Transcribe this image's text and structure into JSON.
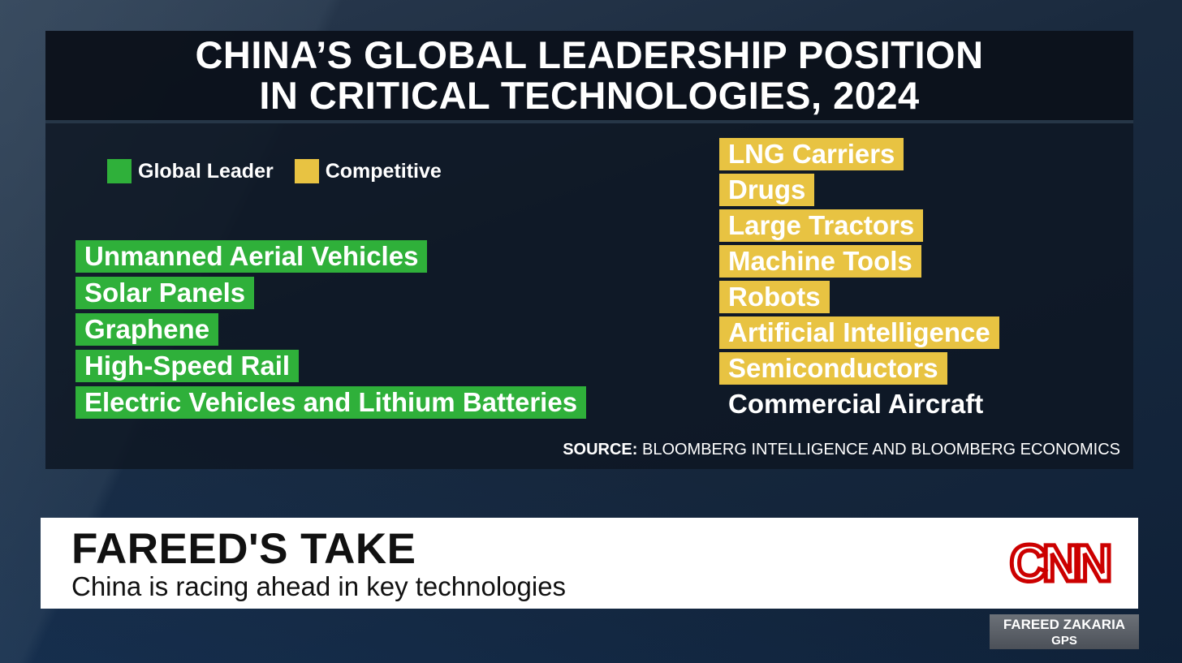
{
  "colors": {
    "global_leader": "#2fb03a",
    "competitive": "#e8c342",
    "cnn_red": "#cc0000"
  },
  "graphic": {
    "title_lines": [
      "CHINA’S GLOBAL LEADERSHIP POSITION",
      "IN CRITICAL TECHNOLOGIES, 2024"
    ],
    "legend": [
      {
        "label": "Global Leader",
        "color": "#2fb03a"
      },
      {
        "label": "Competitive",
        "color": "#e8c342"
      }
    ],
    "global_leader": [
      "Unmanned Aerial Vehicles",
      "Solar Panels",
      "Graphene",
      "High-Speed Rail",
      "Electric Vehicles and Lithium Batteries"
    ],
    "competitive": [
      "LNG Carriers",
      "Drugs",
      "Large Tractors",
      "Machine Tools",
      "Robots",
      "Artificial Intelligence",
      "Semiconductors"
    ],
    "other": [
      "Commercial Aircraft"
    ],
    "source_label": "SOURCE:",
    "source_text": "BLOOMBERG INTELLIGENCE AND BLOOMBERG ECONOMICS"
  },
  "lower_third": {
    "headline": "FAREED'S TAKE",
    "subheadline": "China is racing ahead in key technologies",
    "network_logo": "CNN"
  },
  "show_bug": {
    "host": "FAREED ZAKARIA",
    "show": "GPS"
  }
}
